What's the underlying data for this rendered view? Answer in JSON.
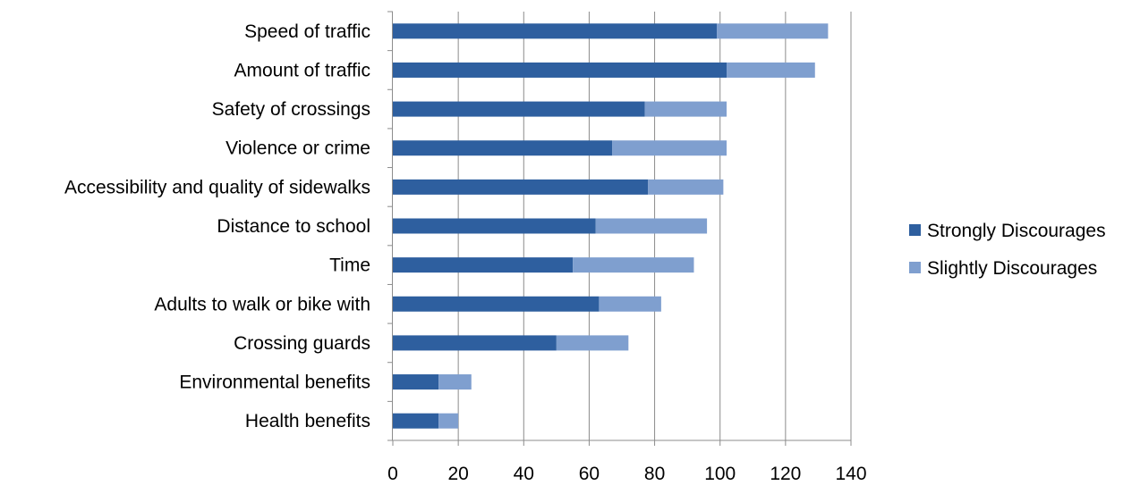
{
  "chart_data": {
    "type": "bar",
    "orientation": "horizontal",
    "stacked": true,
    "categories": [
      "Speed of traffic",
      "Amount of traffic",
      "Safety of crossings",
      "Violence or crime",
      "Accessibility and quality of sidewalks",
      "Distance to school",
      "Time",
      "Adults to walk or bike with",
      "Crossing guards",
      "Environmental benefits",
      "Health benefits"
    ],
    "series": [
      {
        "name": "Strongly Discourages",
        "color": "#2E5F9F",
        "values": [
          99,
          102,
          77,
          67,
          78,
          62,
          55,
          63,
          50,
          14,
          14
        ]
      },
      {
        "name": "Slightly Discourages",
        "color": "#7F9FCF",
        "values": [
          34,
          27,
          25,
          35,
          23,
          34,
          37,
          19,
          22,
          10,
          6
        ]
      }
    ],
    "xlim": [
      0,
      140
    ],
    "xticks": [
      "0",
      "20",
      "40",
      "60",
      "80",
      "100",
      "120",
      "140"
    ],
    "grid": true,
    "legend_position": "right",
    "title": "",
    "xlabel": "",
    "ylabel": ""
  }
}
